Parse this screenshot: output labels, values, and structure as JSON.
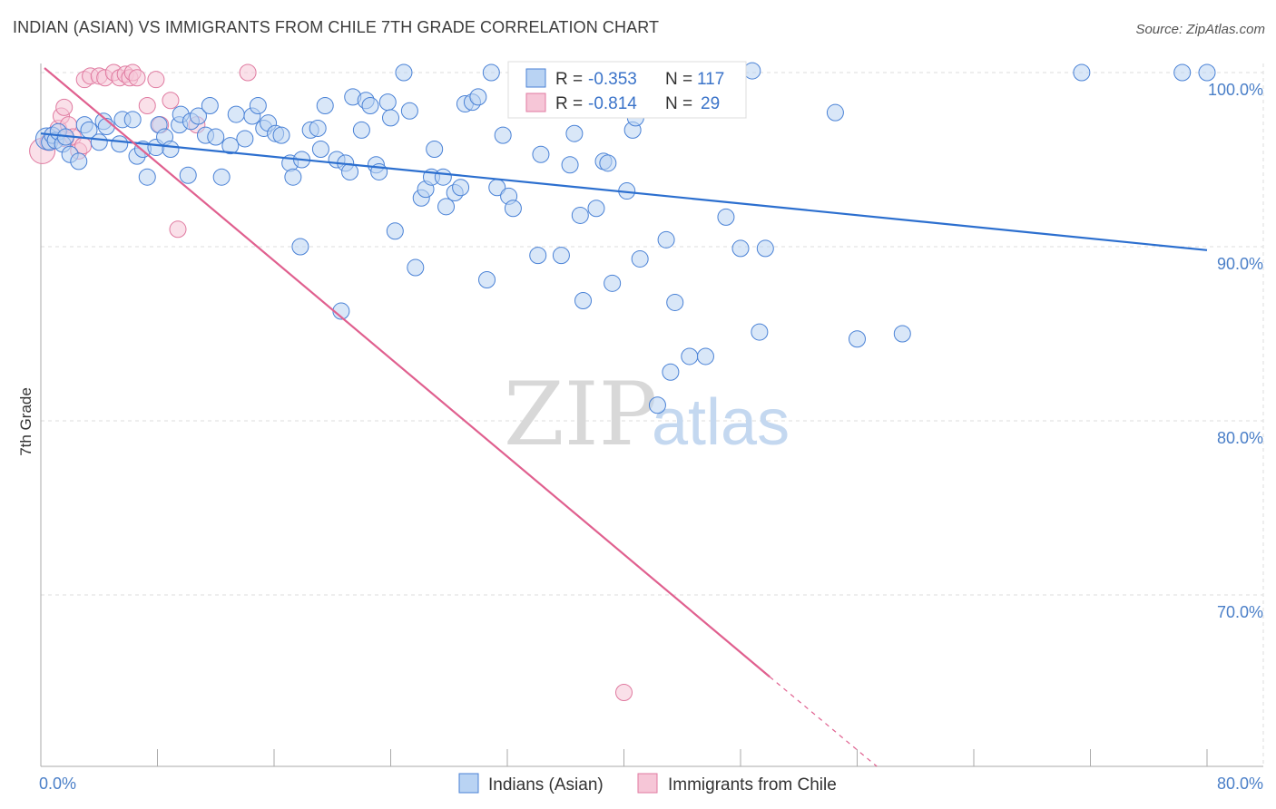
{
  "title": "INDIAN (ASIAN) VS IMMIGRANTS FROM CHILE 7TH GRADE CORRELATION CHART",
  "source": "Source: ZipAtlas.com",
  "watermark": {
    "zip": "ZIP",
    "atlas": "atlas"
  },
  "colors": {
    "blue": "#4a82d6",
    "blue_fill": "#b9d3f3",
    "blue_line": "#2c6fcf",
    "pink": "#e07aa0",
    "pink_fill": "#f6c6d7",
    "pink_line": "#e0608f",
    "axis_text": "#4a7fc8",
    "grid": "#dcdcdc"
  },
  "legend": {
    "rows": [
      {
        "r_label": "R = ",
        "r_value": "-0.353",
        "n_label": "N = ",
        "n_value": "117"
      },
      {
        "r_label": "R = ",
        "r_value": "-0.814",
        "n_label": "N = ",
        "n_value": "29"
      }
    ]
  },
  "bottom_legend": [
    "Indians (Asian)",
    "Immigrants from Chile"
  ],
  "chart_data": {
    "type": "scatter",
    "title": "INDIAN (ASIAN) VS IMMIGRANTS FROM CHILE 7TH GRADE CORRELATION CHART",
    "xlabel": "",
    "ylabel": "7th Grade",
    "xlim": [
      0,
      80
    ],
    "ylim": [
      60,
      102
    ],
    "x_tick_labels": [
      "0.0%",
      "80.0%"
    ],
    "y_ticks": [
      70,
      80,
      90,
      100
    ],
    "y_tick_labels": [
      "70.0%",
      "80.0%",
      "90.0%",
      "100.0%"
    ],
    "grid": true,
    "legend_position": "top-center",
    "series": [
      {
        "name": "Indians (Asian)",
        "r": -0.353,
        "n": 117,
        "trend": {
          "x": [
            0,
            80
          ],
          "y": [
            96.5,
            89.8
          ]
        },
        "points": [
          [
            0.4,
            96.2
          ],
          [
            0.6,
            96.0
          ],
          [
            0.8,
            96.4
          ],
          [
            1.0,
            96.1
          ],
          [
            1.2,
            96.6
          ],
          [
            1.5,
            95.9
          ],
          [
            1.7,
            96.3
          ],
          [
            2.0,
            95.3
          ],
          [
            2.6,
            94.9
          ],
          [
            3.0,
            97.0
          ],
          [
            3.3,
            96.7
          ],
          [
            4.0,
            96.0
          ],
          [
            4.3,
            97.2
          ],
          [
            4.5,
            96.9
          ],
          [
            5.4,
            95.9
          ],
          [
            5.6,
            97.3
          ],
          [
            6.3,
            97.3
          ],
          [
            6.6,
            95.2
          ],
          [
            7.0,
            95.6
          ],
          [
            7.3,
            94.0
          ],
          [
            7.9,
            95.7
          ],
          [
            8.1,
            97.0
          ],
          [
            8.5,
            96.3
          ],
          [
            8.9,
            95.6
          ],
          [
            9.5,
            97.0
          ],
          [
            9.6,
            97.6
          ],
          [
            10.1,
            94.1
          ],
          [
            10.3,
            97.2
          ],
          [
            10.8,
            97.5
          ],
          [
            11.3,
            96.4
          ],
          [
            11.6,
            98.1
          ],
          [
            12.0,
            96.3
          ],
          [
            12.4,
            94.0
          ],
          [
            13.0,
            95.8
          ],
          [
            13.4,
            97.6
          ],
          [
            14.0,
            96.2
          ],
          [
            14.5,
            97.5
          ],
          [
            14.9,
            98.1
          ],
          [
            15.3,
            96.8
          ],
          [
            15.6,
            97.1
          ],
          [
            16.1,
            96.5
          ],
          [
            16.5,
            96.4
          ],
          [
            17.1,
            94.8
          ],
          [
            17.3,
            94.0
          ],
          [
            17.9,
            95.0
          ],
          [
            17.8,
            90.0
          ],
          [
            18.5,
            96.7
          ],
          [
            19.0,
            96.8
          ],
          [
            19.2,
            95.6
          ],
          [
            19.5,
            98.1
          ],
          [
            20.3,
            95.0
          ],
          [
            20.6,
            86.3
          ],
          [
            20.9,
            94.8
          ],
          [
            21.2,
            94.3
          ],
          [
            21.4,
            98.6
          ],
          [
            22.0,
            96.7
          ],
          [
            22.3,
            98.4
          ],
          [
            22.6,
            98.1
          ],
          [
            23.0,
            94.7
          ],
          [
            23.2,
            94.3
          ],
          [
            23.8,
            98.3
          ],
          [
            24.0,
            97.4
          ],
          [
            24.3,
            90.9
          ],
          [
            24.9,
            100.0
          ],
          [
            25.3,
            97.8
          ],
          [
            25.7,
            88.8
          ],
          [
            26.1,
            92.8
          ],
          [
            26.4,
            93.3
          ],
          [
            26.8,
            94.0
          ],
          [
            27.0,
            95.6
          ],
          [
            27.6,
            94.0
          ],
          [
            27.8,
            92.3
          ],
          [
            28.4,
            93.1
          ],
          [
            28.8,
            93.4
          ],
          [
            29.1,
            98.2
          ],
          [
            29.6,
            98.3
          ],
          [
            30.0,
            98.6
          ],
          [
            30.6,
            88.1
          ],
          [
            30.9,
            100.0
          ],
          [
            31.3,
            93.4
          ],
          [
            31.7,
            96.4
          ],
          [
            32.1,
            92.9
          ],
          [
            32.4,
            92.2
          ],
          [
            34.1,
            89.5
          ],
          [
            34.3,
            95.3
          ],
          [
            35.7,
            89.5
          ],
          [
            36.3,
            94.7
          ],
          [
            36.6,
            96.5
          ],
          [
            37.0,
            91.8
          ],
          [
            37.2,
            86.9
          ],
          [
            38.1,
            92.2
          ],
          [
            38.6,
            94.9
          ],
          [
            38.9,
            94.8
          ],
          [
            39.2,
            87.9
          ],
          [
            40.2,
            93.2
          ],
          [
            40.6,
            96.7
          ],
          [
            40.8,
            97.4
          ],
          [
            41.1,
            89.3
          ],
          [
            42.3,
            80.9
          ],
          [
            42.9,
            90.4
          ],
          [
            43.2,
            82.8
          ],
          [
            43.5,
            86.8
          ],
          [
            44.5,
            83.7
          ],
          [
            45.6,
            83.7
          ],
          [
            47.0,
            91.7
          ],
          [
            48.0,
            89.9
          ],
          [
            48.8,
            100.1
          ],
          [
            49.3,
            85.1
          ],
          [
            49.7,
            89.9
          ],
          [
            54.5,
            97.7
          ],
          [
            56.0,
            84.7
          ],
          [
            59.1,
            85.0
          ],
          [
            71.4,
            100.0
          ],
          [
            78.3,
            100.0
          ],
          [
            80.0,
            100.0
          ]
        ]
      },
      {
        "name": "Immigrants from Chile",
        "r": -0.814,
        "n": 29,
        "trend": {
          "x": [
            0,
            50
          ],
          "y": [
            100.0,
            65.3
          ]
        },
        "points": [
          [
            0.1,
            95.5
          ],
          [
            0.5,
            96.0
          ],
          [
            0.8,
            96.4
          ],
          [
            1.2,
            96.8
          ],
          [
            1.4,
            97.5
          ],
          [
            1.6,
            98.0
          ],
          [
            1.7,
            96.2
          ],
          [
            1.9,
            97.0
          ],
          [
            2.2,
            96.3
          ],
          [
            2.6,
            95.5
          ],
          [
            2.9,
            95.8
          ],
          [
            3.0,
            99.6
          ],
          [
            3.4,
            99.8
          ],
          [
            4.0,
            99.8
          ],
          [
            4.4,
            99.7
          ],
          [
            5.0,
            100.0
          ],
          [
            5.4,
            99.7
          ],
          [
            5.8,
            99.9
          ],
          [
            6.1,
            99.7
          ],
          [
            6.3,
            100.0
          ],
          [
            6.6,
            99.7
          ],
          [
            7.3,
            98.1
          ],
          [
            7.9,
            99.6
          ],
          [
            8.2,
            97.0
          ],
          [
            8.9,
            98.4
          ],
          [
            9.4,
            91.0
          ],
          [
            10.7,
            97.0
          ],
          [
            14.2,
            100.0
          ],
          [
            40.0,
            64.4
          ]
        ]
      }
    ]
  }
}
